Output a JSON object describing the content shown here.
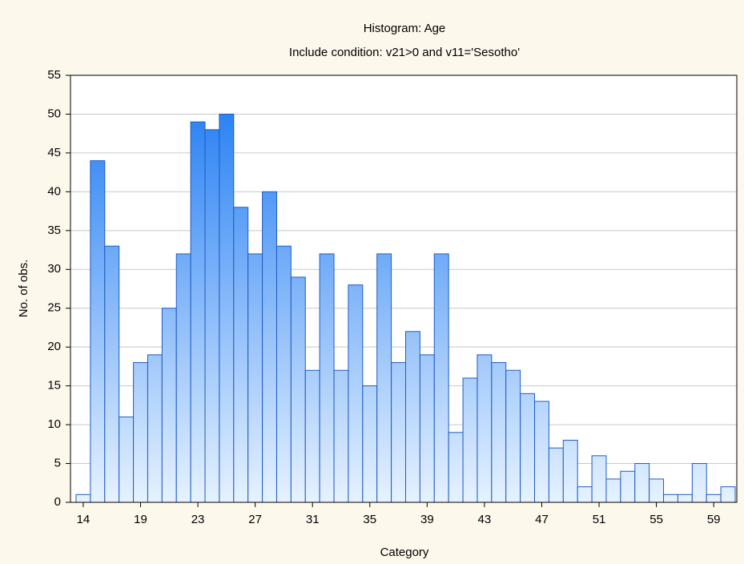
{
  "chart_data": {
    "type": "bar",
    "title": "Histogram: Age",
    "subtitle": "Include condition: v21>0 and v11='Sesotho'",
    "x_label": "Category",
    "y_label": "No. of obs.",
    "categories": [
      14,
      null,
      null,
      null,
      19,
      null,
      null,
      null,
      23,
      null,
      null,
      null,
      27,
      null,
      null,
      null,
      31,
      null,
      null,
      null,
      35,
      null,
      null,
      null,
      39,
      null,
      null,
      null,
      43,
      null,
      null,
      null,
      47,
      null,
      null,
      null,
      51,
      null,
      null,
      null,
      55,
      null,
      null,
      null,
      59,
      null
    ],
    "values": [
      1,
      44,
      33,
      11,
      18,
      19,
      25,
      32,
      49,
      48,
      50,
      38,
      32,
      40,
      33,
      29,
      17,
      32,
      17,
      28,
      15,
      32,
      18,
      22,
      19,
      32,
      9,
      16,
      19,
      18,
      17,
      14,
      13,
      7,
      8,
      2,
      6,
      3,
      4,
      5,
      3,
      1,
      1,
      5,
      1,
      2
    ],
    "gradient": [
      "#1a78f2",
      "#e6f2ff"
    ],
    "edge_color": "#1f5bc4",
    "ylim": [
      0,
      55
    ],
    "yticks": [
      0,
      5,
      10,
      15,
      20,
      25,
      30,
      35,
      40,
      45,
      50,
      55
    ],
    "grid": true
  }
}
